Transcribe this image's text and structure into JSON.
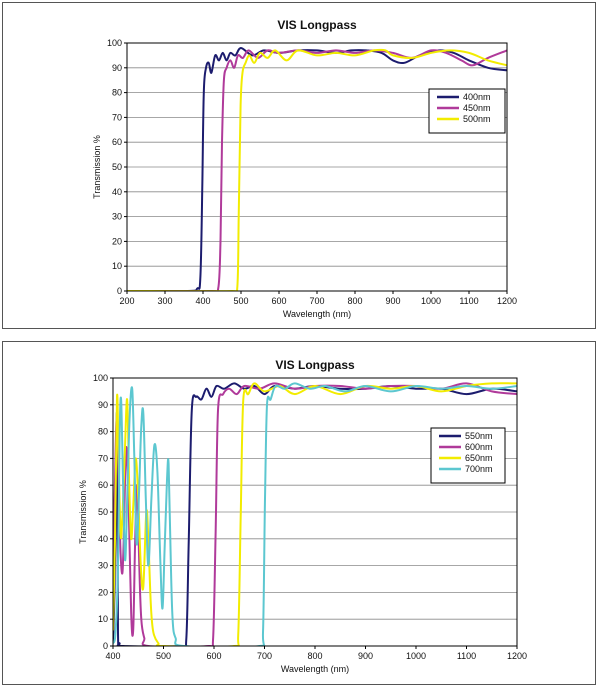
{
  "chart_data": [
    {
      "type": "line",
      "title": "VIS Longpass",
      "xlabel": "Wavelength (nm)",
      "ylabel": "Transmission %",
      "xlim": [
        200,
        1200
      ],
      "ylim": [
        0,
        100
      ],
      "xticks": [
        200,
        300,
        400,
        500,
        600,
        700,
        800,
        900,
        1000,
        1100,
        1200
      ],
      "yticks": [
        0,
        10,
        20,
        30,
        40,
        50,
        60,
        70,
        80,
        90,
        100
      ],
      "grid": "horizontal",
      "legend_position": "right",
      "series": [
        {
          "name": "400nm",
          "color": "#1c1c6e",
          "points": [
            [
              200,
              0
            ],
            [
              360,
              0
            ],
            [
              385,
              1
            ],
            [
              393,
              5
            ],
            [
              398,
              40
            ],
            [
              402,
              80
            ],
            [
              408,
              90
            ],
            [
              415,
              92
            ],
            [
              422,
              88
            ],
            [
              432,
              95
            ],
            [
              442,
              93
            ],
            [
              452,
              96
            ],
            [
              462,
              93
            ],
            [
              472,
              96
            ],
            [
              485,
              95
            ],
            [
              500,
              98
            ],
            [
              530,
              95
            ],
            [
              560,
              97
            ],
            [
              600,
              96
            ],
            [
              650,
              97
            ],
            [
              700,
              97
            ],
            [
              750,
              96
            ],
            [
              790,
              97
            ],
            [
              830,
              97
            ],
            [
              870,
              96
            ],
            [
              900,
              93
            ],
            [
              930,
              92
            ],
            [
              970,
              95
            ],
            [
              1020,
              97
            ],
            [
              1060,
              96
            ],
            [
              1100,
              93
            ],
            [
              1150,
              90
            ],
            [
              1200,
              89
            ]
          ]
        },
        {
          "name": "450nm",
          "color": "#b03a9a",
          "points": [
            [
              200,
              0
            ],
            [
              420,
              0
            ],
            [
              440,
              1
            ],
            [
              446,
              20
            ],
            [
              450,
              60
            ],
            [
              455,
              85
            ],
            [
              462,
              90
            ],
            [
              472,
              93
            ],
            [
              482,
              90
            ],
            [
              492,
              95
            ],
            [
              505,
              94
            ],
            [
              520,
              97
            ],
            [
              545,
              94
            ],
            [
              570,
              97
            ],
            [
              600,
              96
            ],
            [
              650,
              97
            ],
            [
              700,
              96
            ],
            [
              750,
              97
            ],
            [
              800,
              96
            ],
            [
              850,
              97
            ],
            [
              900,
              96
            ],
            [
              950,
              94
            ],
            [
              1000,
              97
            ],
            [
              1040,
              96
            ],
            [
              1080,
              93
            ],
            [
              1110,
              91
            ],
            [
              1150,
              94
            ],
            [
              1200,
              97
            ]
          ]
        },
        {
          "name": "500nm",
          "color": "#f2ec00",
          "points": [
            [
              200,
              0
            ],
            [
              475,
              0
            ],
            [
              490,
              1
            ],
            [
              494,
              30
            ],
            [
              499,
              75
            ],
            [
              504,
              88
            ],
            [
              512,
              92
            ],
            [
              522,
              95
            ],
            [
              535,
              92
            ],
            [
              550,
              96
            ],
            [
              570,
              94
            ],
            [
              590,
              97
            ],
            [
              620,
              93
            ],
            [
              650,
              97
            ],
            [
              700,
              95
            ],
            [
              750,
              96
            ],
            [
              800,
              95
            ],
            [
              850,
              97
            ],
            [
              880,
              97
            ],
            [
              900,
              95
            ],
            [
              950,
              94
            ],
            [
              1000,
              96
            ],
            [
              1050,
              97
            ],
            [
              1100,
              96
            ],
            [
              1150,
              93
            ],
            [
              1200,
              91
            ]
          ]
        }
      ]
    },
    {
      "type": "line",
      "title": "VIS Longpass",
      "xlabel": "Wavelength (nm)",
      "ylabel": "Transmission %",
      "xlim": [
        400,
        1200
      ],
      "ylim": [
        0,
        100
      ],
      "xticks": [
        400,
        500,
        600,
        700,
        800,
        900,
        1000,
        1100,
        1200
      ],
      "yticks": [
        0,
        10,
        20,
        30,
        40,
        50,
        60,
        70,
        80,
        90,
        100
      ],
      "grid": "horizontal",
      "legend_position": "right",
      "series": [
        {
          "name": "550nm",
          "color": "#1c1c6e",
          "points": [
            [
              400,
              2
            ],
            [
              403,
              20
            ],
            [
              406,
              60
            ],
            [
              408,
              85
            ],
            [
              410,
              5
            ],
            [
              413,
              1
            ],
            [
              420,
              0
            ],
            [
              535,
              0
            ],
            [
              545,
              2
            ],
            [
              550,
              40
            ],
            [
              556,
              88
            ],
            [
              565,
              93
            ],
            [
              575,
              92
            ],
            [
              585,
              96
            ],
            [
              595,
              93
            ],
            [
              605,
              97
            ],
            [
              620,
              96
            ],
            [
              640,
              98
            ],
            [
              660,
              96
            ],
            [
              680,
              97
            ],
            [
              700,
              94
            ],
            [
              720,
              97
            ],
            [
              760,
              96
            ],
            [
              800,
              97
            ],
            [
              850,
              96
            ],
            [
              900,
              96
            ],
            [
              950,
              97
            ],
            [
              1000,
              96
            ],
            [
              1050,
              96
            ],
            [
              1100,
              94
            ],
            [
              1150,
              96
            ],
            [
              1200,
              95
            ]
          ]
        },
        {
          "name": "600nm",
          "color": "#b03a9a",
          "points": [
            [
              400,
              30
            ],
            [
              404,
              62
            ],
            [
              407,
              84
            ],
            [
              410,
              72
            ],
            [
              414,
              40
            ],
            [
              418,
              27
            ],
            [
              421,
              38
            ],
            [
              426,
              74
            ],
            [
              431,
              52
            ],
            [
              436,
              12
            ],
            [
              440,
              6
            ],
            [
              444,
              40
            ],
            [
              448,
              60
            ],
            [
              452,
              30
            ],
            [
              456,
              10
            ],
            [
              462,
              3
            ],
            [
              470,
              0
            ],
            [
              590,
              0
            ],
            [
              598,
              2
            ],
            [
              603,
              40
            ],
            [
              608,
              88
            ],
            [
              618,
              94
            ],
            [
              630,
              96
            ],
            [
              645,
              94
            ],
            [
              660,
              97
            ],
            [
              690,
              96
            ],
            [
              720,
              98
            ],
            [
              760,
              96
            ],
            [
              800,
              97
            ],
            [
              850,
              97
            ],
            [
              900,
              96
            ],
            [
              950,
              97
            ],
            [
              1000,
              97
            ],
            [
              1050,
              96
            ],
            [
              1100,
              98
            ],
            [
              1150,
              95
            ],
            [
              1200,
              94
            ]
          ]
        },
        {
          "name": "650nm",
          "color": "#f2ec00",
          "points": [
            [
              400,
              6
            ],
            [
              404,
              40
            ],
            [
              408,
              93
            ],
            [
              411,
              70
            ],
            [
              415,
              42
            ],
            [
              418,
              46
            ],
            [
              423,
              70
            ],
            [
              428,
              92
            ],
            [
              432,
              60
            ],
            [
              436,
              40
            ],
            [
              440,
              52
            ],
            [
              445,
              70
            ],
            [
              450,
              55
            ],
            [
              455,
              30
            ],
            [
              460,
              22
            ],
            [
              466,
              50
            ],
            [
              470,
              40
            ],
            [
              475,
              15
            ],
            [
              480,
              5
            ],
            [
              490,
              1
            ],
            [
              500,
              0
            ],
            [
              640,
              0
            ],
            [
              648,
              4
            ],
            [
              653,
              50
            ],
            [
              658,
              92
            ],
            [
              668,
              94
            ],
            [
              680,
              98
            ],
            [
              700,
              95
            ],
            [
              730,
              97
            ],
            [
              760,
              94
            ],
            [
              800,
              97
            ],
            [
              850,
              94
            ],
            [
              900,
              97
            ],
            [
              950,
              96
            ],
            [
              1000,
              97
            ],
            [
              1050,
              95
            ],
            [
              1100,
              97
            ],
            [
              1150,
              98
            ],
            [
              1200,
              98
            ]
          ]
        },
        {
          "name": "700nm",
          "color": "#5cc7d0",
          "points": [
            [
              400,
              1
            ],
            [
              405,
              5
            ],
            [
              410,
              30
            ],
            [
              413,
              78
            ],
            [
              416,
              92
            ],
            [
              420,
              60
            ],
            [
              424,
              32
            ],
            [
              428,
              54
            ],
            [
              433,
              86
            ],
            [
              438,
              96
            ],
            [
              442,
              72
            ],
            [
              447,
              38
            ],
            [
              452,
              60
            ],
            [
              456,
              82
            ],
            [
              460,
              87
            ],
            [
              465,
              55
            ],
            [
              470,
              30
            ],
            [
              476,
              55
            ],
            [
              482,
              75
            ],
            [
              488,
              65
            ],
            [
              494,
              30
            ],
            [
              498,
              14
            ],
            [
              502,
              35
            ],
            [
              507,
              62
            ],
            [
              510,
              68
            ],
            [
              514,
              35
            ],
            [
              518,
              10
            ],
            [
              524,
              3
            ],
            [
              540,
              0
            ],
            [
              690,
              0
            ],
            [
              697,
              5
            ],
            [
              701,
              55
            ],
            [
              705,
              90
            ],
            [
              712,
              92
            ],
            [
              722,
              97
            ],
            [
              740,
              96
            ],
            [
              760,
              98
            ],
            [
              790,
              96
            ],
            [
              820,
              97
            ],
            [
              860,
              95
            ],
            [
              900,
              97
            ],
            [
              950,
              95
            ],
            [
              1000,
              97
            ],
            [
              1050,
              96
            ],
            [
              1100,
              97
            ],
            [
              1150,
              96
            ],
            [
              1200,
              97
            ]
          ]
        }
      ]
    }
  ]
}
